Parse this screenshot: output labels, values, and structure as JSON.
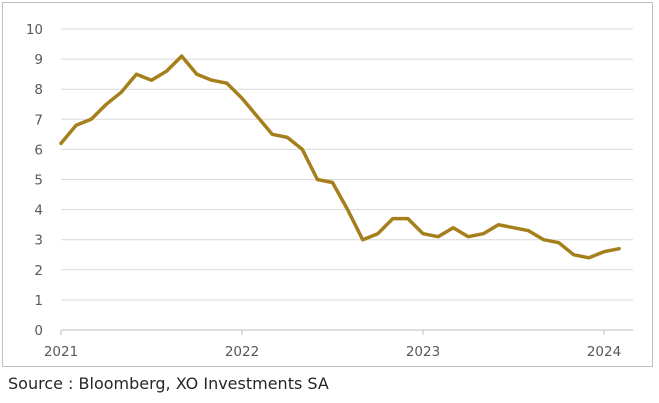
{
  "source_note": "Source : Bloomberg, XO Investments SA",
  "chart_data": {
    "type": "line",
    "title": "",
    "xlabel": "",
    "ylabel": "",
    "ylim": [
      0,
      10
    ],
    "yticks": [
      0,
      1,
      2,
      3,
      4,
      5,
      6,
      7,
      8,
      9,
      10
    ],
    "xticks": [
      "2021",
      "2022",
      "2023",
      "2024"
    ],
    "grid": true,
    "legend": "none",
    "line_color": "#a57f1c",
    "x": [
      "2021-01",
      "2021-02",
      "2021-03",
      "2021-04",
      "2021-05",
      "2021-06",
      "2021-07",
      "2021-08",
      "2021-09",
      "2021-10",
      "2021-11",
      "2021-12",
      "2022-01",
      "2022-02",
      "2022-03",
      "2022-04",
      "2022-05",
      "2022-06",
      "2022-07",
      "2022-08",
      "2022-09",
      "2022-10",
      "2022-11",
      "2022-12",
      "2023-01",
      "2023-02",
      "2023-03",
      "2023-04",
      "2023-05",
      "2023-06",
      "2023-07",
      "2023-08",
      "2023-09",
      "2023-10",
      "2023-11",
      "2023-12",
      "2024-01",
      "2024-02"
    ],
    "values": [
      6.2,
      6.8,
      7.0,
      7.5,
      7.9,
      8.5,
      8.3,
      8.6,
      9.1,
      8.5,
      8.3,
      8.2,
      7.7,
      7.1,
      6.5,
      6.4,
      6.0,
      5.0,
      4.9,
      4.0,
      3.0,
      3.2,
      3.7,
      3.7,
      3.2,
      3.1,
      3.4,
      3.1,
      3.2,
      3.5,
      3.4,
      3.3,
      3.0,
      2.9,
      2.5,
      2.4,
      2.6,
      2.7
    ]
  }
}
